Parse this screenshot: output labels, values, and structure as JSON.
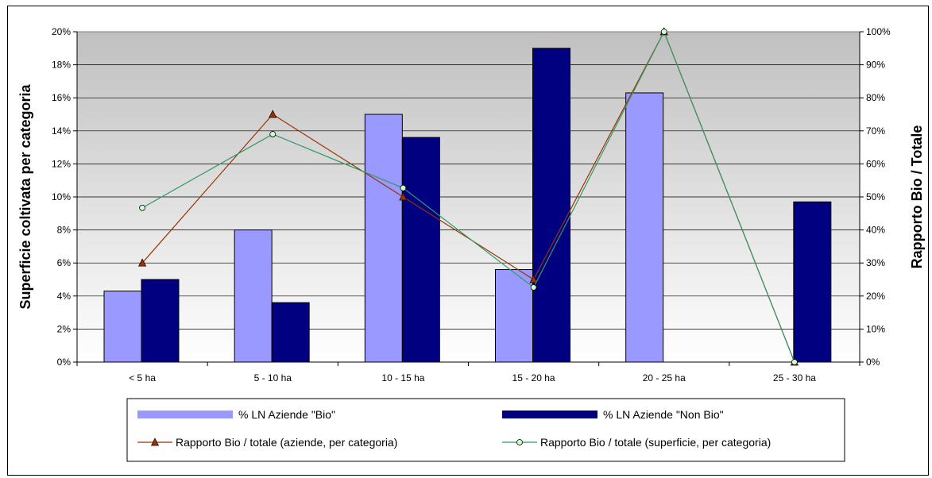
{
  "chart_data": {
    "type": "bar",
    "categories": [
      "< 5 ha",
      "5 - 10 ha",
      "10 - 15 ha",
      "15 - 20 ha",
      "20 - 25 ha",
      "25 - 30 ha"
    ],
    "series": [
      {
        "name": "% LN Aziende \"Bio\"",
        "kind": "bar",
        "axis": "left",
        "color": "#9999FF",
        "values": [
          4.3,
          8.0,
          15.0,
          5.6,
          16.3,
          0
        ]
      },
      {
        "name": "% LN Aziende \"Non Bio\"",
        "kind": "bar",
        "axis": "left",
        "color": "#000080",
        "values": [
          5.0,
          3.6,
          13.6,
          19.0,
          0,
          9.7
        ]
      },
      {
        "name": "Rapporto Bio / totale (aziende, per categoria)",
        "kind": "line",
        "axis": "right",
        "color": "#993300",
        "marker": "triangle",
        "marker_color": "#993300",
        "values": [
          30,
          75,
          50,
          25,
          100,
          0
        ]
      },
      {
        "name": "Rapporto Bio / totale (superficie, per categoria)",
        "kind": "line",
        "axis": "right",
        "color": "#339966",
        "marker": "circle",
        "marker_color": "#CCFFCC",
        "values": [
          46.7,
          69.0,
          52.7,
          22.6,
          100,
          0
        ]
      }
    ],
    "ylabel": "Superficie coltivata per categoria",
    "y2label": "Rapporto Bio / Totale",
    "ylim": [
      0,
      20
    ],
    "y2lim": [
      0,
      100
    ],
    "yticks": [
      "0%",
      "2%",
      "4%",
      "6%",
      "8%",
      "10%",
      "12%",
      "14%",
      "16%",
      "18%",
      "20%"
    ],
    "y2ticks": [
      "0%",
      "10%",
      "20%",
      "30%",
      "40%",
      "50%",
      "60%",
      "70%",
      "80%",
      "90%",
      "100%"
    ],
    "grid": true,
    "legend_position": "bottom",
    "plot_background": [
      "#C0C0C0",
      "#FFFFFF"
    ]
  }
}
